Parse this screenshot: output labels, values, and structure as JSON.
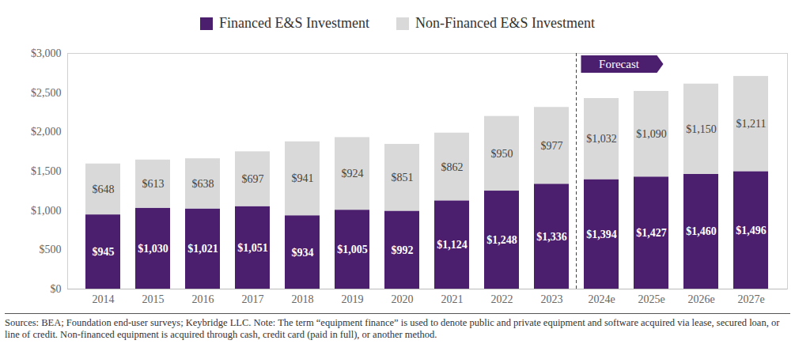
{
  "chart_data": {
    "type": "bar",
    "stacked": true,
    "data_labels": true,
    "grid": false,
    "legend": "top",
    "categories": [
      "2014",
      "2015",
      "2016",
      "2017",
      "2018",
      "2019",
      "2020",
      "2021",
      "2022",
      "2023",
      "2024e",
      "2025e",
      "2026e",
      "2027e"
    ],
    "series": [
      {
        "name": "Financed E&S Investment",
        "color": "#4b1f6e",
        "values": [
          945,
          1030,
          1021,
          1051,
          934,
          1005,
          992,
          1124,
          1248,
          1336,
          1394,
          1427,
          1460,
          1496
        ],
        "value_labels": [
          "$945",
          "$1,030",
          "$1,021",
          "$1,051",
          "$934",
          "$1,005",
          "$992",
          "$1,124",
          "$1,248",
          "$1,336",
          "$1,394",
          "$1,427",
          "$1,460",
          "$1,496"
        ]
      },
      {
        "name": "Non-Financed E&S Investment",
        "color": "#d9d9d9",
        "values": [
          648,
          613,
          638,
          697,
          941,
          924,
          851,
          862,
          950,
          977,
          1032,
          1090,
          1150,
          1211
        ],
        "value_labels": [
          "$648",
          "$613",
          "$638",
          "$697",
          "$941",
          "$924",
          "$851",
          "$862",
          "$950",
          "$977",
          "$1,032",
          "$1,090",
          "$1,150",
          "$1,211"
        ]
      }
    ],
    "ylim": [
      0,
      3000
    ],
    "yticks": [
      {
        "value": 0,
        "label": "$0"
      },
      {
        "value": 500,
        "label": "$500"
      },
      {
        "value": 1000,
        "label": "$1,000"
      },
      {
        "value": 1500,
        "label": "$1,500"
      },
      {
        "value": 2000,
        "label": "$2,000"
      },
      {
        "value": 2500,
        "label": "$2,500"
      },
      {
        "value": 3000,
        "label": "$3,000"
      }
    ],
    "annotations": [
      {
        "text": "Forecast",
        "x": "2024e"
      }
    ],
    "caption": "Sources: BEA; Foundation end-user surveys; Keybridge LLC. Note: The term “equipment finance” is used to denote public and private equipment and software acquired via lease, secured loan, or line of credit. Non-financed equipment is acquired through cash, credit card (paid in full), or another method."
  }
}
